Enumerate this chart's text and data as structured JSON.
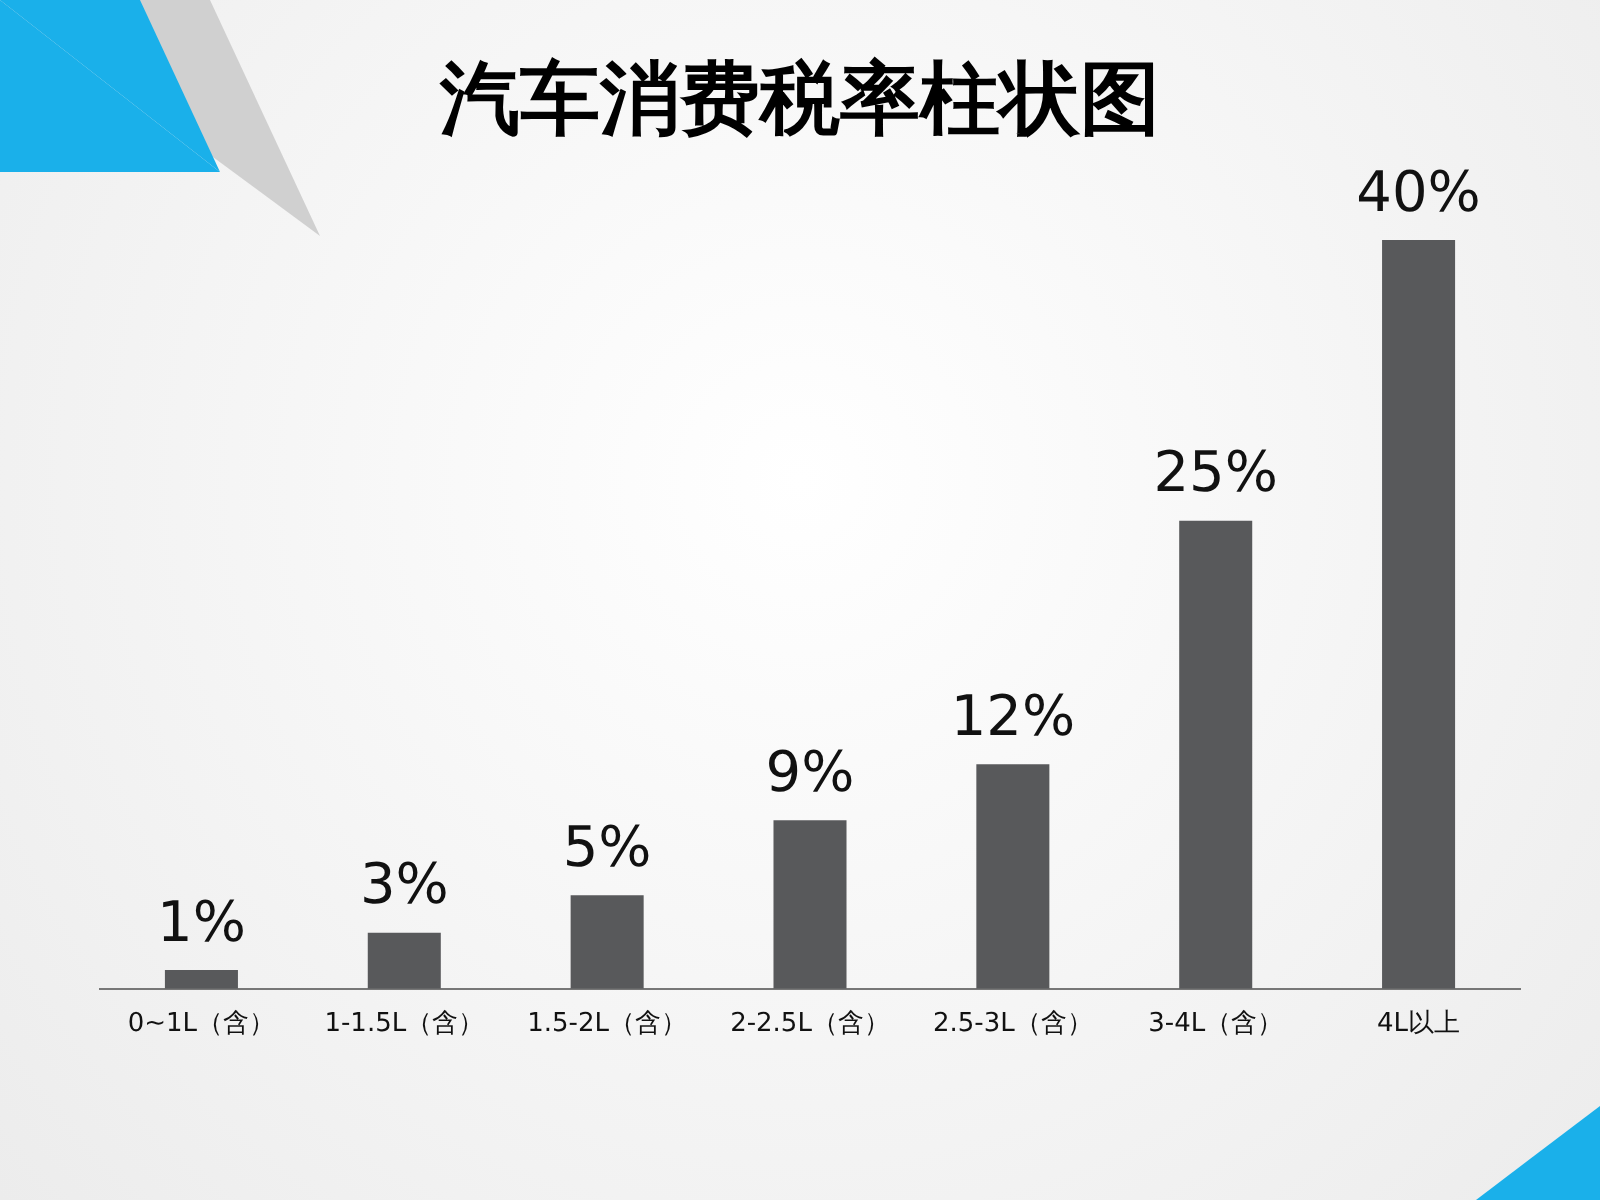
{
  "chart_data": {
    "type": "bar",
    "title": "汽车消费税率柱状图",
    "categories": [
      "0~1L（含）",
      "1-1.5L（含）",
      "1.5-2L（含）",
      "2-2.5L（含）",
      "2.5-3L（含）",
      "3-4L（含）",
      "4L以上"
    ],
    "values": [
      1,
      3,
      5,
      9,
      12,
      25,
      40
    ],
    "value_labels": [
      "1%",
      "3%",
      "5%",
      "9%",
      "12%",
      "25%",
      "40%"
    ],
    "color": "#58595b",
    "grid": false,
    "legend": false
  }
}
